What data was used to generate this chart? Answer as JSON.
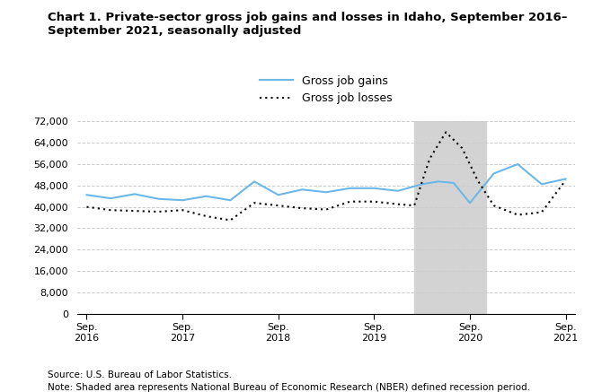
{
  "title": "Chart 1. Private-sector gross job gains and losses in Idaho, September 2016–\nSeptember 2021, seasonally adjusted",
  "source_text": "Source: U.S. Bureau of Labor Statistics.",
  "note_text": "Note: Shaded area represents National Bureau of Economic Research (NBER) defined recession period.",
  "legend_gains": "Gross job gains",
  "legend_losses": "Gross job losses",
  "gains_color": "#6BB8E8",
  "losses_color": "#000000",
  "recession_color": "#D3D3D3",
  "recession_start": 3.42,
  "recession_end": 4.17,
  "ylim": [
    0,
    72000
  ],
  "yticks": [
    0,
    8000,
    16000,
    24000,
    32000,
    40000,
    48000,
    56000,
    64000,
    72000
  ],
  "ytick_labels": [
    "0",
    "8,000",
    "16,000",
    "24,000",
    "32,000",
    "40,000",
    "48,000",
    "56,000",
    "64,000",
    "72,000"
  ],
  "xtick_positions": [
    0,
    1,
    2,
    3,
    4,
    5
  ],
  "xtick_labels": [
    "Sep.\n2016",
    "Sep.\n2017",
    "Sep.\n2018",
    "Sep.\n2019",
    "Sep.\n2020",
    "Sep.\n2021"
  ],
  "gains_x": [
    0.0,
    0.25,
    0.5,
    0.75,
    1.0,
    1.25,
    1.5,
    1.75,
    2.0,
    2.25,
    2.5,
    2.75,
    3.0,
    3.25,
    3.5,
    3.67,
    3.83,
    4.0,
    4.25,
    4.5,
    4.75,
    5.0
  ],
  "gains_y": [
    44500,
    43200,
    44800,
    43000,
    42500,
    44000,
    42500,
    49500,
    44500,
    46500,
    45500,
    47000,
    47000,
    46000,
    48500,
    49500,
    49000,
    41500,
    52500,
    56000,
    48500,
    50500
  ],
  "losses_x": [
    0.0,
    0.25,
    0.5,
    0.75,
    1.0,
    1.25,
    1.5,
    1.75,
    2.0,
    2.25,
    2.5,
    2.75,
    3.0,
    3.25,
    3.42,
    3.58,
    3.75,
    3.92,
    4.08,
    4.25,
    4.5,
    4.75,
    5.0
  ],
  "losses_y": [
    40000,
    38800,
    38500,
    38200,
    38800,
    36500,
    35000,
    41500,
    40500,
    39500,
    39000,
    42000,
    42000,
    41000,
    40500,
    58000,
    68000,
    62000,
    50000,
    40500,
    37000,
    38000,
    50000
  ],
  "bg_color": "#FFFFFF",
  "grid_color": "#CCCCCC"
}
